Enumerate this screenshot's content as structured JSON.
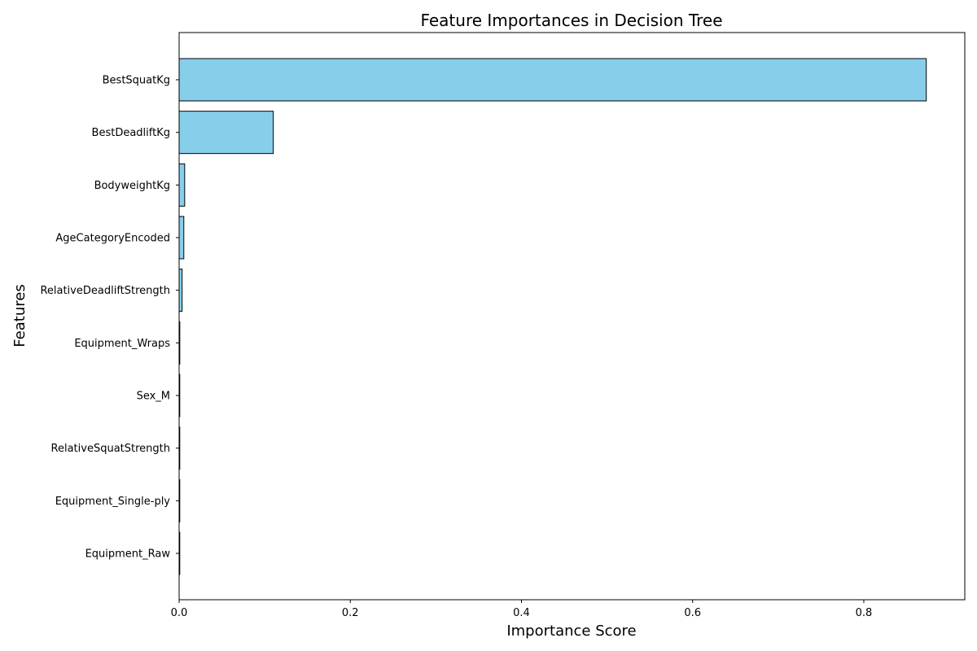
{
  "chart_data": {
    "type": "bar",
    "orientation": "horizontal",
    "title": "Feature Importances in Decision Tree",
    "xlabel": "Importance Score",
    "ylabel": "Features",
    "categories": [
      "BestSquatKg",
      "BestDeadliftKg",
      "BodyweightKg",
      "AgeCategoryEncoded",
      "RelativeDeadliftStrength",
      "Equipment_Wraps",
      "Sex_M",
      "RelativeSquatStrength",
      "Equipment_Single-ply",
      "Equipment_Raw"
    ],
    "values": [
      0.873,
      0.11,
      0.0065,
      0.0055,
      0.0035,
      0.0008,
      0.0006,
      0.0005,
      0.0004,
      0.0003
    ],
    "xlim": [
      0,
      0.918
    ],
    "xticks": [
      0,
      0.2,
      0.4,
      0.6,
      0.8
    ],
    "xtick_labels": [
      "0.0",
      "0.2",
      "0.4",
      "0.6",
      "0.8"
    ],
    "bar_color": "#87CEEB",
    "bar_edge_color": "#000000",
    "grid": false,
    "legend": "none"
  }
}
